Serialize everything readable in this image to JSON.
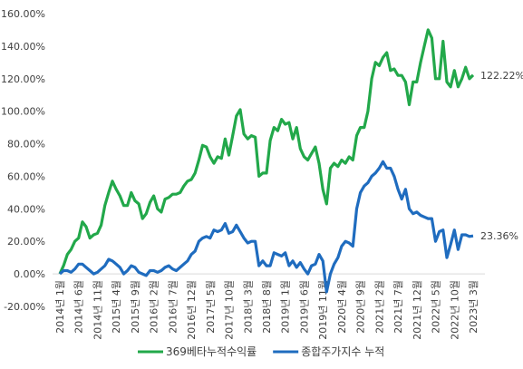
{
  "chart_data": {
    "type": "line",
    "categories": [
      "2014년 1월",
      null,
      null,
      null,
      null,
      "2014년 6월",
      null,
      null,
      null,
      null,
      "2014년 11월",
      null,
      null,
      null,
      null,
      "2015년 4월",
      null,
      null,
      null,
      null,
      "2015년 9월",
      null,
      null,
      null,
      null,
      "2016년 2월",
      null,
      null,
      null,
      null,
      "2016년 7월",
      null,
      null,
      null,
      null,
      "2016년 12월",
      null,
      null,
      null,
      null,
      "2017년 5월",
      null,
      null,
      null,
      null,
      "2017년 10월",
      null,
      null,
      null,
      null,
      "2018년 3월",
      null,
      null,
      null,
      null,
      "2018년 8월",
      null,
      null,
      null,
      null,
      "2019년 1월",
      null,
      null,
      null,
      null,
      "2019년 6월",
      null,
      null,
      null,
      null,
      "2019년 11월",
      null,
      null,
      null,
      null,
      "2020년 4월",
      null,
      null,
      null,
      null,
      "2020년 9월",
      null,
      null,
      null,
      null,
      "2021년 2월",
      null,
      null,
      null,
      null,
      "2021년 7월",
      null,
      null,
      null,
      null,
      "2021년 12월",
      null,
      null,
      null,
      null,
      "2022년 5월",
      null,
      null,
      null,
      null,
      "2022년 10월",
      null,
      null,
      null,
      null,
      "2023년 3월"
    ],
    "series": [
      {
        "name": "369베타누적수익률",
        "color": "#22a84a",
        "values": [
          0,
          5,
          12,
          15,
          20,
          22,
          32,
          29,
          22,
          24,
          25,
          30,
          42,
          50,
          57,
          52,
          48,
          42,
          42,
          50,
          45,
          43,
          34,
          37,
          44,
          48,
          40,
          38,
          46,
          47,
          49,
          49,
          50,
          54,
          57,
          58,
          62,
          70,
          79,
          78,
          72,
          68,
          72,
          71,
          83,
          73,
          85,
          97,
          101,
          86,
          83,
          85,
          84,
          60,
          62,
          62,
          82,
          90,
          88,
          95,
          92,
          93,
          83,
          90,
          77,
          72,
          70,
          74,
          78,
          68,
          52,
          43,
          65,
          68,
          66,
          70,
          68,
          72,
          70,
          85,
          90,
          90,
          100,
          120,
          130,
          128,
          133,
          136,
          125,
          126,
          122,
          122,
          118,
          104,
          118,
          118,
          130,
          140,
          150,
          145,
          120,
          120,
          143,
          118,
          115,
          125,
          115,
          120,
          127,
          120,
          122.22
        ],
        "value_labels": [
          null,
          null,
          null,
          null,
          null,
          null,
          null,
          null,
          null,
          null,
          null,
          null,
          null,
          null,
          null,
          null,
          null,
          null,
          null,
          null,
          null,
          null,
          null,
          null,
          null,
          null,
          null,
          null,
          null,
          null,
          null,
          null,
          null,
          null,
          null,
          null,
          null,
          null,
          null,
          null,
          null,
          null,
          null,
          null,
          null,
          null,
          null,
          null,
          null,
          null,
          null,
          null,
          null,
          null,
          null,
          null,
          null,
          null,
          null,
          null,
          null,
          null,
          null,
          null,
          null,
          null,
          null,
          null,
          null,
          null,
          null,
          null,
          null,
          null,
          null,
          null,
          null,
          null,
          null,
          null,
          null,
          null,
          null,
          null,
          null,
          null,
          null,
          null,
          null,
          null,
          null,
          null,
          null,
          null,
          null,
          null,
          null,
          null,
          null,
          null,
          null,
          null,
          null,
          null,
          null,
          null,
          null,
          null,
          null,
          null,
          "122.22%"
        ]
      },
      {
        "name": "종합주가지수 누적",
        "color": "#1f6cbf",
        "values": [
          0,
          2,
          2,
          1,
          3,
          6,
          6,
          4,
          2,
          0,
          1,
          3,
          5,
          9,
          8,
          6,
          4,
          0,
          2,
          5,
          4,
          1,
          0,
          -1,
          2,
          2,
          1,
          2,
          4,
          5,
          3,
          2,
          4,
          6,
          8,
          12,
          14,
          20,
          22,
          23,
          22,
          27,
          26,
          27,
          31,
          25,
          26,
          30,
          26,
          22,
          19,
          20,
          20,
          5,
          8,
          5,
          5,
          13,
          12,
          11,
          13,
          5,
          8,
          4,
          7,
          3,
          0,
          5,
          6,
          12,
          8,
          -11,
          0,
          6,
          10,
          17,
          20,
          19,
          17,
          40,
          50,
          54,
          56,
          60,
          62,
          65,
          69,
          65,
          65,
          60,
          52,
          46,
          52,
          40,
          37,
          38,
          36,
          35,
          34,
          34,
          20,
          26,
          27,
          10,
          18,
          27,
          15,
          24,
          24,
          23,
          23.36
        ],
        "value_labels": [
          null,
          null,
          null,
          null,
          null,
          null,
          null,
          null,
          null,
          null,
          null,
          null,
          null,
          null,
          null,
          null,
          null,
          null,
          null,
          null,
          null,
          null,
          null,
          null,
          null,
          null,
          null,
          null,
          null,
          null,
          null,
          null,
          null,
          null,
          null,
          null,
          null,
          null,
          null,
          null,
          null,
          null,
          null,
          null,
          null,
          null,
          null,
          null,
          null,
          null,
          null,
          null,
          null,
          null,
          null,
          null,
          null,
          null,
          null,
          null,
          null,
          null,
          null,
          null,
          null,
          null,
          null,
          null,
          null,
          null,
          null,
          null,
          null,
          null,
          null,
          null,
          null,
          null,
          null,
          null,
          null,
          null,
          null,
          null,
          null,
          null,
          null,
          null,
          null,
          null,
          null,
          null,
          null,
          null,
          null,
          null,
          null,
          null,
          null,
          null,
          null,
          null,
          null,
          null,
          null,
          null,
          null,
          null,
          null,
          null,
          "23.36%"
        ]
      }
    ],
    "ylim": [
      -20,
      160
    ],
    "yticks": [
      {
        "value": -20,
        "label": "-20.00%"
      },
      {
        "value": 0,
        "label": "0.00%"
      },
      {
        "value": 20,
        "label": "20.00%"
      },
      {
        "value": 40,
        "label": "40.00%"
      },
      {
        "value": 60,
        "label": "60.00%"
      },
      {
        "value": 80,
        "label": "80.00%"
      },
      {
        "value": 100,
        "label": "100.00%"
      },
      {
        "value": 120,
        "label": "120.00%"
      },
      {
        "value": 140,
        "label": "140.00%"
      },
      {
        "value": 160,
        "label": "160.00%"
      }
    ]
  }
}
